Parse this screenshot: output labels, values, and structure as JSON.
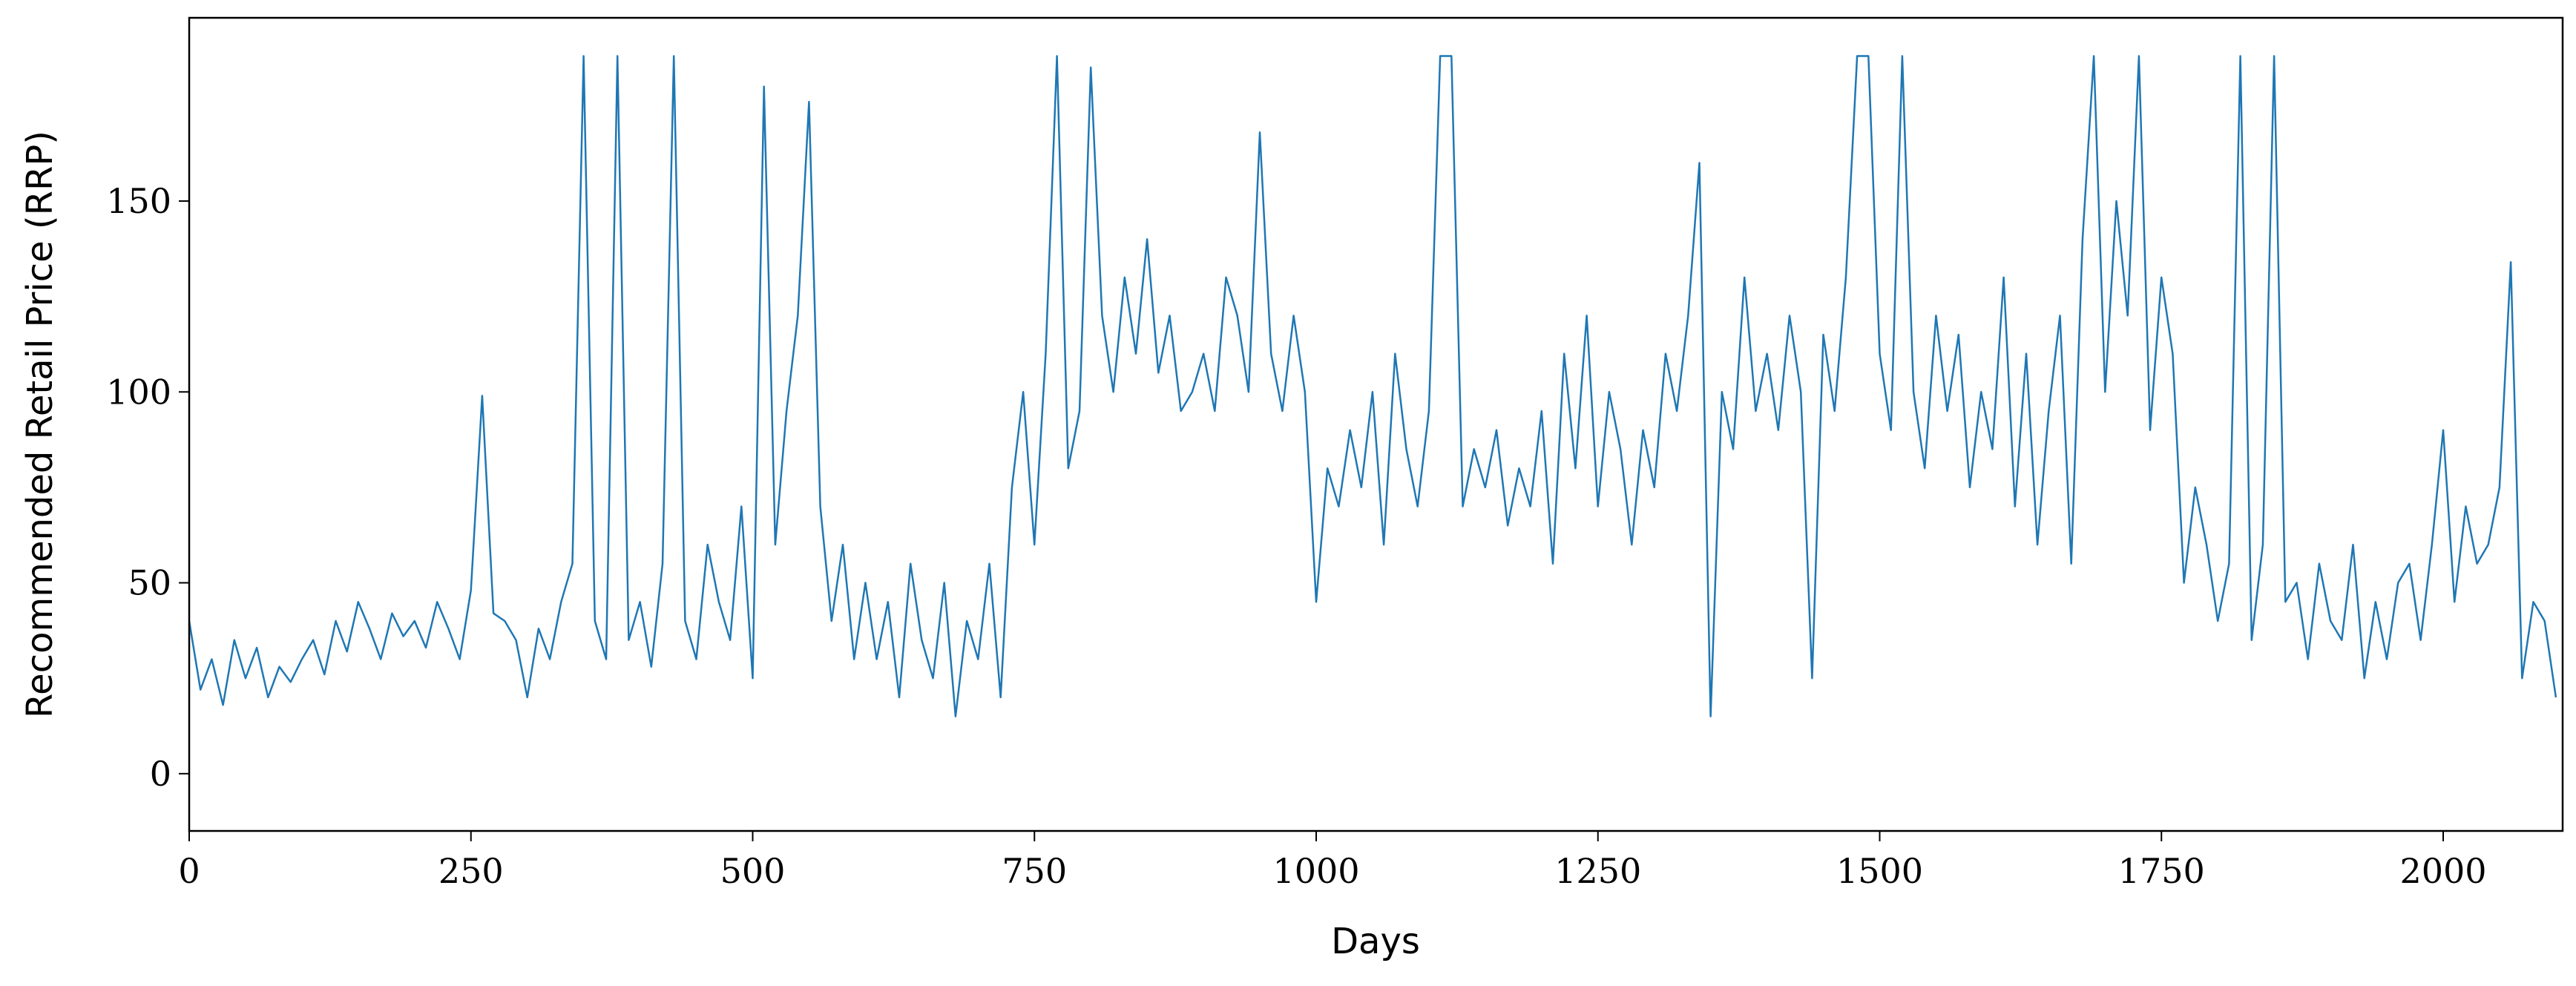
{
  "chart_data": {
    "type": "line",
    "xlabel": "Days",
    "ylabel": "Recommended Retail Price (RRP)",
    "xlim": [
      0,
      2106
    ],
    "ylim": [
      -15,
      198
    ],
    "xticks": [
      0,
      250,
      500,
      750,
      1000,
      1250,
      1500,
      1750,
      2000
    ],
    "yticks": [
      0,
      50,
      100,
      150
    ],
    "x": [
      0,
      10,
      20,
      30,
      40,
      50,
      60,
      70,
      80,
      90,
      100,
      110,
      120,
      130,
      140,
      150,
      160,
      170,
      180,
      190,
      200,
      210,
      220,
      230,
      240,
      250,
      260,
      270,
      280,
      290,
      300,
      310,
      320,
      330,
      340,
      350,
      360,
      370,
      380,
      390,
      400,
      410,
      420,
      430,
      440,
      450,
      460,
      470,
      480,
      490,
      500,
      510,
      520,
      530,
      540,
      550,
      560,
      570,
      580,
      590,
      600,
      610,
      620,
      630,
      640,
      650,
      660,
      670,
      680,
      690,
      700,
      710,
      720,
      730,
      740,
      750,
      760,
      770,
      780,
      790,
      800,
      810,
      820,
      830,
      840,
      850,
      860,
      870,
      880,
      890,
      900,
      910,
      920,
      930,
      940,
      950,
      960,
      970,
      980,
      990,
      1000,
      1010,
      1020,
      1030,
      1040,
      1050,
      1060,
      1070,
      1080,
      1090,
      1100,
      1110,
      1120,
      1130,
      1140,
      1150,
      1160,
      1170,
      1180,
      1190,
      1200,
      1210,
      1220,
      1230,
      1240,
      1250,
      1260,
      1270,
      1280,
      1290,
      1300,
      1310,
      1320,
      1330,
      1340,
      1350,
      1360,
      1370,
      1380,
      1390,
      1400,
      1410,
      1420,
      1430,
      1440,
      1450,
      1460,
      1470,
      1480,
      1490,
      1500,
      1510,
      1520,
      1530,
      1540,
      1550,
      1560,
      1570,
      1580,
      1590,
      1600,
      1610,
      1620,
      1630,
      1640,
      1650,
      1660,
      1670,
      1680,
      1690,
      1700,
      1710,
      1720,
      1730,
      1740,
      1750,
      1760,
      1770,
      1780,
      1790,
      1800,
      1810,
      1820,
      1830,
      1840,
      1850,
      1860,
      1870,
      1880,
      1890,
      1900,
      1910,
      1920,
      1930,
      1940,
      1950,
      1960,
      1970,
      1980,
      1990,
      2000,
      2010,
      2020,
      2030,
      2040,
      2050,
      2060,
      2070,
      2080,
      2090,
      2100
    ],
    "series": [
      {
        "color": "#1f77b4",
        "values": [
          40,
          22,
          30,
          18,
          35,
          25,
          33,
          20,
          28,
          24,
          30,
          35,
          26,
          40,
          32,
          45,
          38,
          30,
          42,
          36,
          40,
          33,
          45,
          38,
          30,
          48,
          99,
          42,
          40,
          35,
          20,
          38,
          30,
          45,
          55,
          188,
          40,
          30,
          188,
          35,
          45,
          28,
          55,
          188,
          40,
          30,
          60,
          45,
          35,
          70,
          25,
          180,
          60,
          95,
          120,
          176,
          70,
          40,
          60,
          30,
          50,
          30,
          45,
          20,
          55,
          35,
          25,
          50,
          15,
          40,
          30,
          55,
          20,
          75,
          100,
          60,
          110,
          188,
          80,
          95,
          185,
          120,
          100,
          130,
          110,
          140,
          105,
          120,
          95,
          100,
          110,
          95,
          130,
          120,
          100,
          168,
          110,
          95,
          120,
          100,
          45,
          80,
          70,
          90,
          75,
          100,
          60,
          110,
          85,
          70,
          95,
          188,
          188,
          70,
          85,
          75,
          90,
          65,
          80,
          70,
          95,
          55,
          110,
          80,
          120,
          70,
          100,
          85,
          60,
          90,
          75,
          110,
          95,
          120,
          160,
          15,
          100,
          85,
          130,
          95,
          110,
          90,
          120,
          100,
          25,
          115,
          95,
          130,
          188,
          188,
          110,
          90,
          188,
          100,
          80,
          120,
          95,
          115,
          75,
          100,
          85,
          130,
          70,
          110,
          60,
          95,
          120,
          55,
          140,
          188,
          100,
          150,
          120,
          188,
          90,
          130,
          110,
          50,
          75,
          60,
          40,
          55,
          188,
          35,
          60,
          188,
          45,
          50,
          30,
          55,
          40,
          35,
          60,
          25,
          45,
          30,
          50,
          55,
          35,
          60,
          90,
          45,
          70,
          55,
          60,
          75,
          134,
          25,
          45,
          40,
          20
        ]
      }
    ]
  }
}
